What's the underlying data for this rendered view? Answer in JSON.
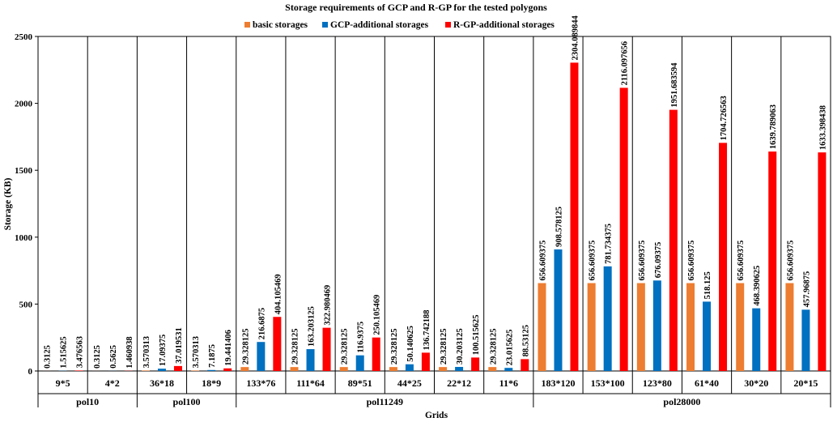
{
  "chart_data": {
    "type": "bar",
    "title": "Storage requirements of GCP and R-GP for the tested polygons",
    "xlabel": "Grids",
    "ylabel": "Storage (KB)",
    "ylim": [
      0,
      2500
    ],
    "yticks": [
      0,
      500,
      1000,
      1500,
      2000,
      2500
    ],
    "legend_position": "top-right",
    "grid": false,
    "categories": [
      "9*5",
      "4*2",
      "36*18",
      "18*9",
      "133*76",
      "111*64",
      "89*51",
      "44*25",
      "22*12",
      "11*6",
      "183*120",
      "153*100",
      "123*80",
      "61*40",
      "30*20",
      "20*15"
    ],
    "groups": [
      {
        "label": "pol10",
        "categories": [
          "9*5",
          "4*2"
        ]
      },
      {
        "label": "pol100",
        "categories": [
          "36*18",
          "18*9"
        ]
      },
      {
        "label": "pol11249",
        "categories": [
          "133*76",
          "111*64",
          "89*51",
          "44*25",
          "22*12",
          "11*6"
        ]
      },
      {
        "label": "pol28000",
        "categories": [
          "183*120",
          "153*100",
          "123*80",
          "61*40",
          "30*20",
          "20*15"
        ]
      }
    ],
    "series": [
      {
        "name": "basic storages",
        "color": "#ED7D31",
        "values": [
          0.3125,
          0.3125,
          3.570313,
          3.570313,
          29.328125,
          29.328125,
          29.328125,
          29.328125,
          29.328125,
          29.328125,
          656.609375,
          656.609375,
          656.609375,
          656.609375,
          656.609375,
          656.609375
        ],
        "labels": [
          "0.3125",
          "0.3125",
          "3.570313",
          "3.570313",
          "29.328125",
          "29.328125",
          "29.328125",
          "29.328125",
          "29.328125",
          "29.328125",
          "656.609375",
          "656.609375",
          "656.609375",
          "656.609375",
          "656.609375",
          "656.609375"
        ]
      },
      {
        "name": "GCP-additional storages",
        "color": "#0070C0",
        "values": [
          1.515625,
          0.5625,
          17.09375,
          7.1875,
          216.6875,
          163.203125,
          116.9375,
          50.140625,
          30.203125,
          23.015625,
          908.578125,
          781.734375,
          676.09375,
          518.125,
          468.390625,
          457.96875
        ],
        "labels": [
          "1.515625",
          "0.5625",
          "17.09375",
          "7.1875",
          "216.6875",
          "163.203125",
          "116.9375",
          "50.140625",
          "30.203125",
          "23.015625",
          "908.578125",
          "781.734375",
          "676.09375",
          "518.125",
          "468.390625",
          "457.96875"
        ]
      },
      {
        "name": "R-GP-additional storages",
        "color": "#FF0000",
        "values": [
          3.476563,
          1.460938,
          37.019531,
          19.441406,
          404.105469,
          322.980469,
          250.105469,
          136.742188,
          100.515625,
          88.53125,
          2304.089844,
          2116.097656,
          1951.683594,
          1704.726563,
          1639.789063,
          1633.398438
        ],
        "labels": [
          "3.476563",
          "1.460938",
          "37.019531",
          "19.441406",
          "404.105469",
          "322.980469",
          "250.105469",
          "136.742188",
          "100.515625",
          "88.53125",
          "2304.089844",
          "2116.097656",
          "1951.683594",
          "1704.726563",
          "1639.789063",
          "1633.398438"
        ]
      }
    ]
  }
}
